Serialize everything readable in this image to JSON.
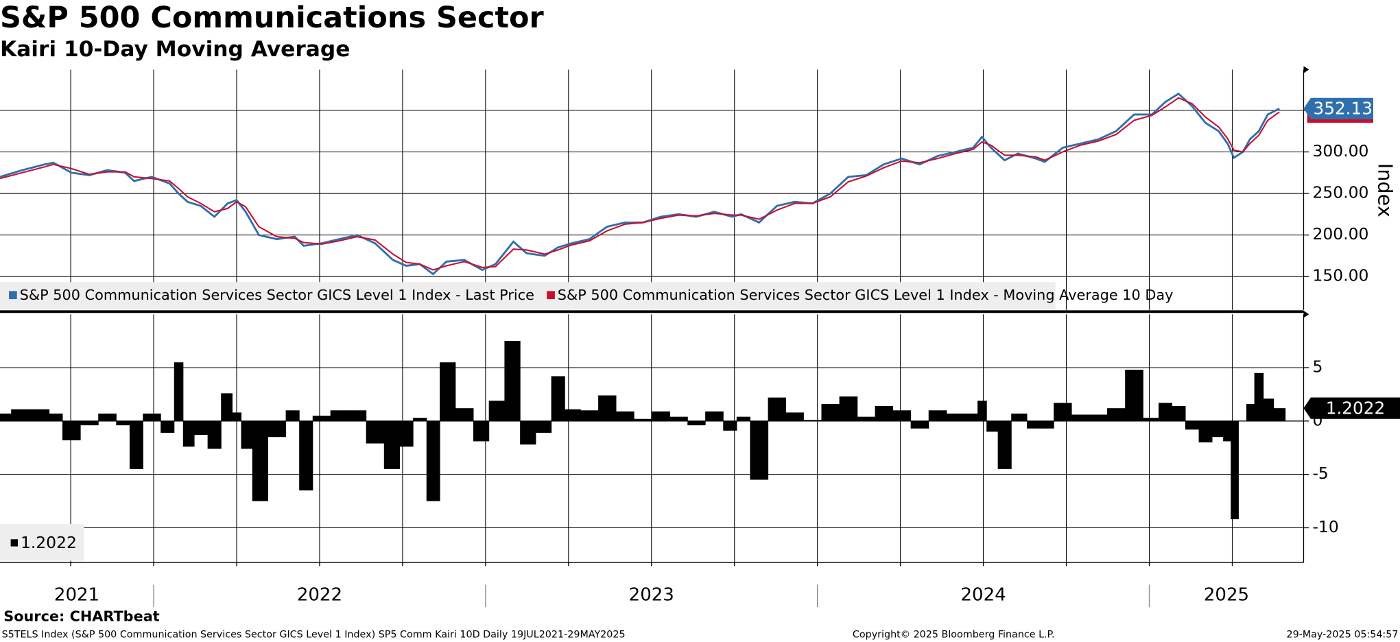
{
  "title": "S&P 500 Communications Sector",
  "subtitle": "Kairi 10-Day Moving Average",
  "source": "Source: CHARTbeat",
  "footer": {
    "left": "S5TELS Index (S&P 500 Communication Services Sector GICS Level 1 Index) SP5 Comm Kairi 10D  Daily 19JUL2021-29MAY2025",
    "center": "Copyright© 2025 Bloomberg Finance L.P.",
    "right": "29-May-2025 05:54:57"
  },
  "chart_data": [
    {
      "type": "line",
      "y_label": "Index",
      "grid": true,
      "x": [
        2021.537,
        2021.604,
        2021.672,
        2021.698,
        2021.752,
        2021.806,
        2021.86,
        2021.914,
        2021.941,
        2021.994,
        2022.048,
        2022.075,
        2022.102,
        2022.142,
        2022.183,
        2022.223,
        2022.25,
        2022.277,
        2022.317,
        2022.371,
        2022.425,
        2022.452,
        2022.506,
        2022.559,
        2022.613,
        2022.667,
        2022.721,
        2022.761,
        2022.802,
        2022.842,
        2022.882,
        2022.936,
        2022.99,
        2023.03,
        2023.084,
        2023.124,
        2023.178,
        2023.218,
        2023.259,
        2023.313,
        2023.366,
        2023.42,
        2023.474,
        2023.528,
        2023.582,
        2023.635,
        2023.689,
        2023.743,
        2023.77,
        2023.824,
        2023.878,
        2023.931,
        2023.985,
        2024.039,
        2024.093,
        2024.147,
        2024.2,
        2024.254,
        2024.308,
        2024.362,
        2024.416,
        2024.469,
        2024.496,
        2024.523,
        2024.564,
        2024.604,
        2024.658,
        2024.685,
        2024.739,
        2024.792,
        2024.846,
        2024.9,
        2024.954,
        2025.008,
        2025.048,
        2025.088,
        2025.129,
        2025.169,
        2025.209,
        2025.236,
        2025.255,
        2025.282,
        2025.303,
        2025.33,
        2025.357,
        2025.392
      ],
      "xlim": [
        2021.537,
        2025.465
      ],
      "ylim": [
        110,
        399
      ],
      "yticks": [
        {
          "value": 150,
          "label": "150.00"
        },
        {
          "value": 200,
          "label": "200.00"
        },
        {
          "value": 250,
          "label": "250.00"
        },
        {
          "value": 300,
          "label": "300.00"
        }
      ],
      "ygrid": [
        150,
        200,
        250,
        300,
        350
      ],
      "xgrid": [
        2021.75,
        2022,
        2022.25,
        2022.5,
        2022.75,
        2023,
        2023.25,
        2023.5,
        2023.75,
        2024,
        2024.25,
        2024.5,
        2024.75,
        2025,
        2025.25
      ],
      "series": [
        {
          "name": "S&P 500 Communication Services Sector GICS Level 1 Index - Last Price",
          "color": "#2f6fad",
          "values": [
            270,
            278,
            285,
            287,
            275,
            272,
            278,
            275,
            265,
            270,
            262,
            250,
            240,
            235,
            222,
            238,
            242,
            228,
            200,
            195,
            198,
            187,
            190,
            195,
            200,
            190,
            170,
            163,
            165,
            153,
            168,
            170,
            158,
            165,
            192,
            178,
            175,
            185,
            190,
            195,
            210,
            215,
            215,
            222,
            225,
            222,
            228,
            222,
            225,
            215,
            235,
            240,
            238,
            250,
            270,
            272,
            285,
            292,
            285,
            295,
            300,
            305,
            318,
            305,
            290,
            298,
            292,
            288,
            305,
            310,
            315,
            325,
            345,
            345,
            360,
            370,
            355,
            335,
            325,
            310,
            293,
            300,
            315,
            325,
            345,
            352.13
          ]
        },
        {
          "name": "S&P 500 Communication Services Sector GICS Level 1 Index - Moving Average 10 Day",
          "color": "#c8102e",
          "values": [
            268,
            275,
            282,
            285,
            280,
            273,
            276,
            276,
            270,
            268,
            265,
            256,
            246,
            238,
            228,
            232,
            240,
            234,
            210,
            198,
            196,
            191,
            189,
            193,
            198,
            194,
            177,
            167,
            165,
            158,
            163,
            168,
            161,
            162,
            183,
            182,
            177,
            182,
            188,
            193,
            205,
            213,
            215,
            220,
            224,
            223,
            226,
            224,
            224,
            219,
            230,
            238,
            238,
            246,
            264,
            271,
            281,
            289,
            287,
            292,
            298,
            303,
            312,
            308,
            296,
            296,
            294,
            290,
            300,
            308,
            313,
            321,
            338,
            344,
            354,
            365,
            358,
            342,
            330,
            316,
            302,
            300,
            310,
            320,
            338,
            348
          ]
        }
      ]
    },
    {
      "type": "bar",
      "grid": true,
      "x": [
        2021.537,
        2021.604,
        2021.672,
        2021.698,
        2021.752,
        2021.806,
        2021.86,
        2021.914,
        2021.941,
        2021.994,
        2022.048,
        2022.075,
        2022.102,
        2022.142,
        2022.183,
        2022.223,
        2022.25,
        2022.277,
        2022.317,
        2022.371,
        2022.425,
        2022.452,
        2022.506,
        2022.559,
        2022.613,
        2022.667,
        2022.721,
        2022.761,
        2022.802,
        2022.842,
        2022.882,
        2022.936,
        2022.99,
        2023.03,
        2023.084,
        2023.124,
        2023.178,
        2023.218,
        2023.259,
        2023.313,
        2023.366,
        2023.42,
        2023.474,
        2023.528,
        2023.582,
        2023.635,
        2023.689,
        2023.743,
        2023.77,
        2023.824,
        2023.878,
        2023.931,
        2023.985,
        2024.039,
        2024.093,
        2024.147,
        2024.2,
        2024.254,
        2024.308,
        2024.362,
        2024.416,
        2024.469,
        2024.496,
        2024.523,
        2024.564,
        2024.604,
        2024.658,
        2024.685,
        2024.739,
        2024.792,
        2024.846,
        2024.9,
        2024.954,
        2025.008,
        2025.048,
        2025.088,
        2025.129,
        2025.169,
        2025.209,
        2025.236,
        2025.255,
        2025.282,
        2025.303,
        2025.33,
        2025.357,
        2025.392
      ],
      "xlim": [
        2021.537,
        2025.465
      ],
      "ylim": [
        -13.25,
        10
      ],
      "yticks": [
        -10,
        -5,
        0,
        5
      ],
      "xgrid": [
        2021.75,
        2022,
        2022.25,
        2022.5,
        2022.75,
        2023,
        2023.25,
        2023.5,
        2023.75,
        2024,
        2024.25,
        2024.5,
        2024.75,
        2025,
        2025.25
      ],
      "xticks": [
        {
          "value": 2021,
          "label": "2021"
        },
        {
          "value": 2022,
          "label": "2022"
        },
        {
          "value": 2023,
          "label": "2023"
        },
        {
          "value": 2024,
          "label": "2024"
        },
        {
          "value": 2025,
          "label": "2025"
        }
      ],
      "series": [
        {
          "color": "#000000",
          "values": [
            0.7,
            1.1,
            1.1,
            0.7,
            -1.8,
            -0.4,
            0.7,
            -0.4,
            -4.5,
            0.7,
            -1.1,
            5.5,
            -2.4,
            -1.3,
            -2.6,
            2.6,
            0.8,
            -2.6,
            -7.5,
            -1.5,
            1.0,
            -6.5,
            0.5,
            1.0,
            1.0,
            -2.1,
            -4.5,
            -2.4,
            0.3,
            -7.5,
            5.5,
            1.2,
            -1.9,
            1.9,
            7.5,
            -2.2,
            -1.1,
            4.2,
            1.1,
            1.0,
            2.4,
            0.9,
            0.2,
            0.9,
            0.4,
            -0.4,
            0.9,
            -0.9,
            0.4,
            -5.5,
            2.2,
            0.8,
            0.1,
            1.6,
            2.3,
            0.4,
            1.4,
            1.0,
            -0.7,
            1.0,
            0.7,
            0.7,
            1.9,
            -1.0,
            -4.5,
            0.7,
            -0.7,
            -0.7,
            1.7,
            0.6,
            0.6,
            1.2,
            4.8,
            0.3,
            1.7,
            1.4,
            -0.8,
            -2.0,
            -1.5,
            -1.9,
            -9.2,
            0.0,
            1.6,
            4.5,
            2.1,
            1.2022
          ]
        }
      ]
    }
  ]
}
